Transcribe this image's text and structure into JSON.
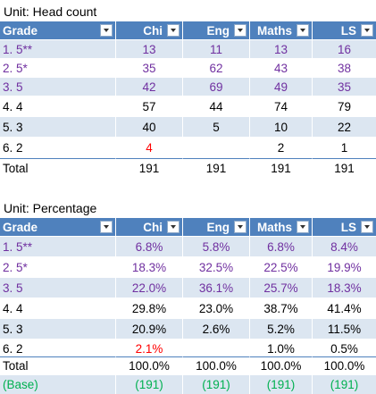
{
  "table1": {
    "unit_label": "Unit: Head count",
    "headers": [
      "Grade",
      "Chi",
      "Eng",
      "Maths",
      "LS"
    ],
    "rows": [
      {
        "grade": "1. 5**",
        "values": [
          "13",
          "11",
          "13",
          "16"
        ],
        "color": "purple"
      },
      {
        "grade": "2. 5*",
        "values": [
          "35",
          "62",
          "43",
          "38"
        ],
        "color": "purple"
      },
      {
        "grade": "3. 5",
        "values": [
          "42",
          "69",
          "49",
          "35"
        ],
        "color": "purple"
      },
      {
        "grade": "4. 4",
        "values": [
          "57",
          "44",
          "74",
          "79"
        ],
        "color": "black"
      },
      {
        "grade": "5. 3",
        "values": [
          "40",
          "5",
          "10",
          "22"
        ],
        "color": "black"
      },
      {
        "grade": "6. 2",
        "values": [
          "4",
          "",
          "2",
          "1"
        ],
        "color": "black"
      }
    ],
    "total": {
      "label": "Total",
      "values": [
        "191",
        "191",
        "191",
        "191"
      ]
    }
  },
  "table2": {
    "unit_label": "Unit: Percentage",
    "headers": [
      "Grade",
      "Chi",
      "Eng",
      "Maths",
      "LS"
    ],
    "rows": [
      {
        "grade": "1. 5**",
        "values": [
          "6.8%",
          "5.8%",
          "6.8%",
          "8.4%"
        ],
        "color": "purple"
      },
      {
        "grade": "2. 5*",
        "values": [
          "18.3%",
          "32.5%",
          "22.5%",
          "19.9%"
        ],
        "color": "purple"
      },
      {
        "grade": "3. 5",
        "values": [
          "22.0%",
          "36.1%",
          "25.7%",
          "18.3%"
        ],
        "color": "purple"
      },
      {
        "grade": "4. 4",
        "values": [
          "29.8%",
          "23.0%",
          "38.7%",
          "41.4%"
        ],
        "color": "black"
      },
      {
        "grade": "5. 3",
        "values": [
          "20.9%",
          "2.6%",
          "5.2%",
          "11.5%"
        ],
        "color": "black"
      },
      {
        "grade": "6. 2",
        "values": [
          "2.1%",
          "",
          "1.0%",
          "0.5%"
        ],
        "color": "black"
      }
    ],
    "total": {
      "label": "Total",
      "values": [
        "100.0%",
        "100.0%",
        "100.0%",
        "100.0%"
      ]
    },
    "base": {
      "label": "(Base)",
      "values": [
        "(191)",
        "(191)",
        "(191)",
        "(191)"
      ]
    }
  },
  "colors": {
    "header_bg": "#4f81bd",
    "band_bg": "#dce6f1",
    "purple_text": "#7030a0",
    "red_text": "#ff0000",
    "base_text": "#00b050"
  }
}
